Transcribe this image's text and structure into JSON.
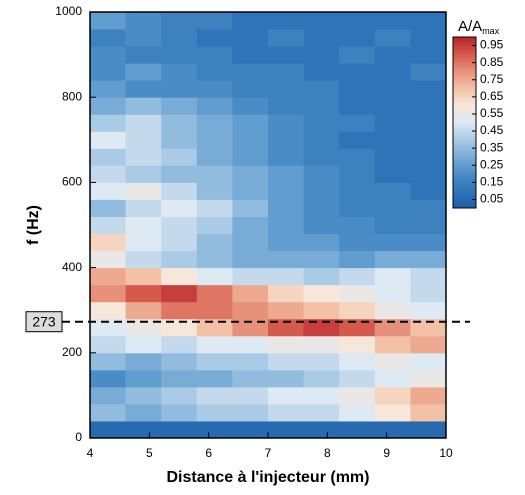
{
  "chart_data": {
    "type": "heatmap",
    "xlabel": "Distance à l'injecteur (mm)",
    "ylabel": "f (Hz)",
    "xlim": [
      4,
      10
    ],
    "xticks": [
      4,
      5,
      6,
      7,
      8,
      9,
      10
    ],
    "ylim": [
      0,
      1000
    ],
    "yticks": [
      0,
      200,
      400,
      600,
      800,
      1000
    ],
    "xbins": [
      4,
      4.6,
      5.2,
      5.8,
      6.4,
      7,
      7.6,
      8.2,
      8.8,
      9.4,
      10
    ],
    "ybins": [
      0,
      40,
      80,
      120,
      160,
      200,
      240,
      280,
      320,
      360,
      400,
      440,
      480,
      520,
      560,
      600,
      640,
      680,
      720,
      760,
      800,
      840,
      880,
      920,
      960,
      1000
    ],
    "z": [
      [
        0.05,
        0.05,
        0.05,
        0.05,
        0.05,
        0.05,
        0.05,
        0.05,
        0.05,
        0.05
      ],
      [
        0.35,
        0.3,
        0.35,
        0.4,
        0.4,
        0.45,
        0.45,
        0.5,
        0.6,
        0.7
      ],
      [
        0.3,
        0.35,
        0.4,
        0.45,
        0.45,
        0.5,
        0.5,
        0.55,
        0.65,
        0.75
      ],
      [
        0.2,
        0.25,
        0.3,
        0.3,
        0.35,
        0.35,
        0.4,
        0.45,
        0.5,
        0.55
      ],
      [
        0.35,
        0.3,
        0.35,
        0.4,
        0.4,
        0.45,
        0.45,
        0.5,
        0.55,
        0.5
      ],
      [
        0.45,
        0.5,
        0.45,
        0.5,
        0.5,
        0.55,
        0.55,
        0.6,
        0.7,
        0.75
      ],
      [
        0.5,
        0.55,
        0.6,
        0.7,
        0.8,
        0.9,
        0.95,
        0.9,
        0.8,
        0.7
      ],
      [
        0.6,
        0.75,
        0.85,
        0.85,
        0.8,
        0.75,
        0.7,
        0.65,
        0.55,
        0.5
      ],
      [
        0.8,
        0.9,
        0.95,
        0.85,
        0.75,
        0.65,
        0.6,
        0.55,
        0.5,
        0.45
      ],
      [
        0.75,
        0.7,
        0.6,
        0.5,
        0.45,
        0.45,
        0.4,
        0.45,
        0.5,
        0.45
      ],
      [
        0.55,
        0.45,
        0.4,
        0.35,
        0.3,
        0.3,
        0.3,
        0.25,
        0.3,
        0.3
      ],
      [
        0.65,
        0.5,
        0.45,
        0.35,
        0.3,
        0.25,
        0.25,
        0.2,
        0.2,
        0.2
      ],
      [
        0.45,
        0.5,
        0.45,
        0.4,
        0.3,
        0.25,
        0.2,
        0.2,
        0.15,
        0.15
      ],
      [
        0.35,
        0.45,
        0.5,
        0.45,
        0.35,
        0.25,
        0.2,
        0.15,
        0.15,
        0.15
      ],
      [
        0.5,
        0.55,
        0.45,
        0.35,
        0.3,
        0.25,
        0.2,
        0.15,
        0.15,
        0.1
      ],
      [
        0.45,
        0.4,
        0.35,
        0.35,
        0.3,
        0.25,
        0.2,
        0.15,
        0.1,
        0.1
      ],
      [
        0.4,
        0.45,
        0.4,
        0.3,
        0.25,
        0.2,
        0.15,
        0.15,
        0.1,
        0.1
      ],
      [
        0.5,
        0.45,
        0.35,
        0.3,
        0.25,
        0.2,
        0.15,
        0.1,
        0.1,
        0.1
      ],
      [
        0.4,
        0.45,
        0.35,
        0.3,
        0.25,
        0.2,
        0.15,
        0.15,
        0.1,
        0.1
      ],
      [
        0.3,
        0.35,
        0.3,
        0.25,
        0.2,
        0.15,
        0.15,
        0.1,
        0.1,
        0.1
      ],
      [
        0.25,
        0.2,
        0.2,
        0.2,
        0.15,
        0.15,
        0.15,
        0.1,
        0.1,
        0.1
      ],
      [
        0.2,
        0.25,
        0.2,
        0.15,
        0.15,
        0.15,
        0.1,
        0.1,
        0.1,
        0.15
      ],
      [
        0.2,
        0.15,
        0.15,
        0.15,
        0.1,
        0.1,
        0.1,
        0.15,
        0.1,
        0.1
      ],
      [
        0.15,
        0.2,
        0.15,
        0.1,
        0.1,
        0.15,
        0.1,
        0.1,
        0.15,
        0.1
      ],
      [
        0.25,
        0.2,
        0.15,
        0.15,
        0.1,
        0.1,
        0.1,
        0.1,
        0.1,
        0.1
      ]
    ],
    "clim": [
      0,
      1
    ],
    "colormap": [
      "#1f5fa8",
      "#2f74b8",
      "#4a8dc6",
      "#78acd6",
      "#aacbe5",
      "#dde9f3",
      "#f7e6da",
      "#f3c2a6",
      "#e8917a",
      "#d45a4c",
      "#b8222d"
    ],
    "colorbar_title": "A/A",
    "colorbar_title_sub": "max",
    "colorbar_ticks": [
      0.05,
      0.15,
      0.25,
      0.35,
      0.45,
      0.55,
      0.65,
      0.75,
      0.85,
      0.95
    ],
    "reference_line": 273
  }
}
